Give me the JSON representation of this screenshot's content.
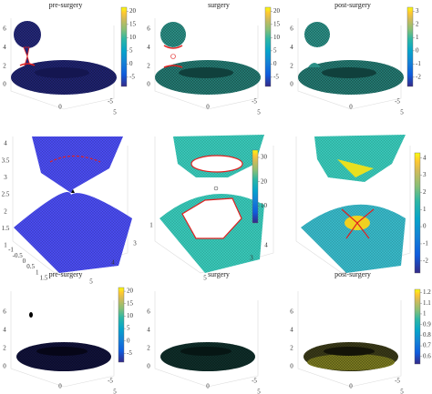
{
  "panels": [
    {
      "title": "pre-surgery",
      "z_ticks": [
        6,
        4,
        2,
        0
      ],
      "x_ticks": [
        0
      ],
      "y_ticks": [
        -5,
        5
      ],
      "colorbar_ticks": [
        20,
        15,
        10,
        5,
        0,
        -5
      ]
    },
    {
      "title": "surgery",
      "z_ticks": [
        6,
        4,
        2,
        0
      ],
      "x_ticks": [
        0
      ],
      "y_ticks": [
        -5,
        5
      ],
      "colorbar_ticks": [
        20,
        15,
        10,
        5,
        0,
        -5
      ]
    },
    {
      "title": "post-surgery",
      "z_ticks": [
        6,
        4,
        2,
        0
      ],
      "x_ticks": [
        0
      ],
      "y_ticks": [
        -5,
        5
      ],
      "colorbar_ticks": [
        3,
        2,
        1,
        0,
        -1,
        -2
      ]
    },
    {
      "z_ticks": [
        4,
        3.5,
        3,
        2.5,
        2,
        1.5,
        1
      ],
      "x_ticks": [
        -1,
        -0.5,
        0,
        0.5,
        1,
        1.5
      ],
      "y_ticks": [
        5,
        4,
        3
      ],
      "colorbar_ticks": [
        30,
        20,
        10
      ]
    },
    {
      "z_ticks": [
        1
      ],
      "x_ticks": [
        5
      ],
      "y_ticks": [
        4,
        3
      ]
    },
    {
      "colorbar_ticks": [
        4,
        3,
        2,
        1,
        0,
        -1,
        -2
      ]
    },
    {
      "title": "pre-surgery",
      "z_ticks": [
        6,
        4,
        2,
        0
      ],
      "x_ticks": [
        0
      ],
      "y_ticks": [
        -5,
        5
      ],
      "colorbar_ticks": [
        20,
        15,
        10,
        5,
        0,
        -5
      ]
    },
    {
      "title": "surgery",
      "z_ticks": [
        6,
        4,
        2,
        0
      ],
      "x_ticks": [
        0
      ],
      "y_ticks": [
        -5,
        5
      ]
    },
    {
      "title": "post-surgery",
      "z_ticks": [
        6,
        4,
        2,
        0
      ],
      "x_ticks": [
        0
      ],
      "y_ticks": [
        -5,
        5
      ],
      "colorbar_ticks": [
        1.2,
        1.1,
        1,
        0.9,
        0.8,
        0.7,
        0.6
      ]
    }
  ]
}
